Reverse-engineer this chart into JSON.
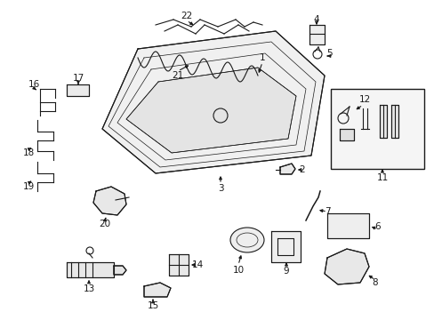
{
  "bg_color": "#ffffff",
  "line_color": "#1a1a1a",
  "lw": 0.8,
  "fs": 7.5,
  "figsize": [
    4.89,
    3.6
  ],
  "dpi": 100
}
